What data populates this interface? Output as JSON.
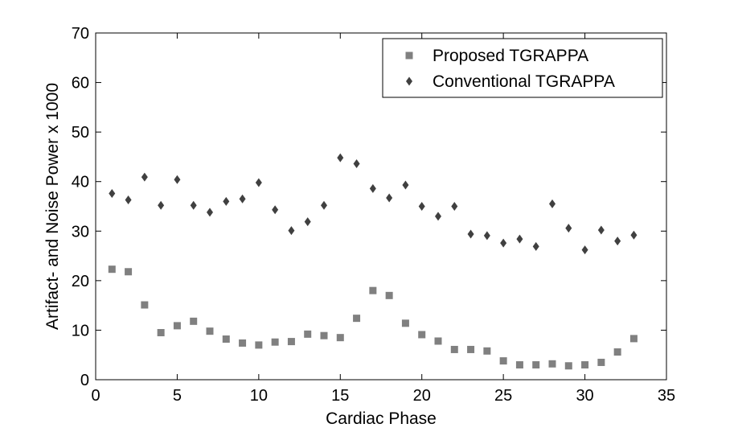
{
  "chart_data": {
    "type": "scatter",
    "title": "",
    "xlabel": "Cardiac Phase",
    "ylabel": "Artifact- and Noise Power x 1000",
    "xlim": [
      0,
      35
    ],
    "ylim": [
      0,
      70
    ],
    "xticks": [
      0,
      5,
      10,
      15,
      20,
      25,
      30,
      35
    ],
    "yticks": [
      0,
      10,
      20,
      30,
      40,
      50,
      60,
      70
    ],
    "grid": false,
    "legend_position": "top-right",
    "series": [
      {
        "name": "Proposed TGRAPPA",
        "marker": "square",
        "color": "#808080",
        "x": [
          1,
          2,
          3,
          4,
          5,
          6,
          7,
          8,
          9,
          10,
          11,
          12,
          13,
          14,
          15,
          16,
          17,
          18,
          19,
          20,
          21,
          22,
          23,
          24,
          25,
          26,
          27,
          28,
          29,
          30,
          31,
          32,
          33
        ],
        "y": [
          22.3,
          21.8,
          15.1,
          9.5,
          10.9,
          11.8,
          9.8,
          8.2,
          7.4,
          7.0,
          7.6,
          7.7,
          9.2,
          8.9,
          8.5,
          12.4,
          18.0,
          17.0,
          11.4,
          9.1,
          7.8,
          6.1,
          6.1,
          5.8,
          3.8,
          3.0,
          3.0,
          3.2,
          2.8,
          3.0,
          3.5,
          5.6,
          8.3
        ]
      },
      {
        "name": "Conventional TGRAPPA",
        "marker": "diamond",
        "color": "#404040",
        "x": [
          1,
          2,
          3,
          4,
          5,
          6,
          7,
          8,
          9,
          10,
          11,
          12,
          13,
          14,
          15,
          16,
          17,
          18,
          19,
          20,
          21,
          22,
          23,
          24,
          25,
          26,
          27,
          28,
          29,
          30,
          31,
          32,
          33
        ],
        "y": [
          37.6,
          36.3,
          40.9,
          35.2,
          40.4,
          35.2,
          33.8,
          36.0,
          36.5,
          39.8,
          34.3,
          30.1,
          31.9,
          35.2,
          44.8,
          43.6,
          38.6,
          36.7,
          39.3,
          35.0,
          33.0,
          35.0,
          29.4,
          29.1,
          27.6,
          28.4,
          26.9,
          35.5,
          30.6,
          26.2,
          30.2,
          28.0,
          29.2
        ]
      }
    ]
  }
}
